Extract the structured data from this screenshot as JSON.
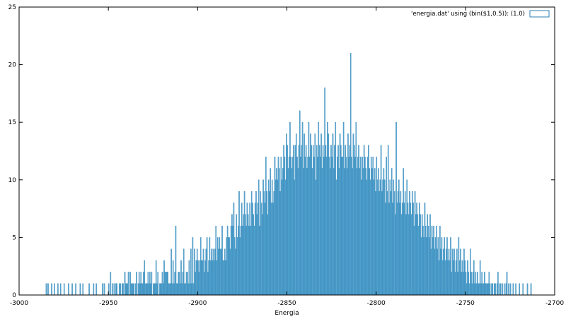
{
  "chart_data": {
    "type": "bar",
    "title": "",
    "xlabel": "Energia",
    "ylabel": "",
    "xlim": [
      -3000,
      -2700
    ],
    "ylim": [
      0,
      25
    ],
    "x_ticks": [
      -3000,
      -2950,
      -2900,
      -2850,
      -2800,
      -2750,
      -2700
    ],
    "x_tick_labels": [
      "-3000",
      "-2950",
      "-2900",
      "-2850",
      "-2800",
      "-2750",
      "-2700"
    ],
    "y_ticks": [
      0,
      5,
      10,
      15,
      20,
      25
    ],
    "y_tick_labels": [
      "0",
      "5",
      "10",
      "15",
      "20",
      "25"
    ],
    "grid": false,
    "legend_position": "top-right",
    "bin_width": 0.5,
    "fill_color": "#3b97c8",
    "edge_color": "#2b7fb4",
    "series": [
      {
        "name": "'energia.dat' using (bin($1,0.5)): (1.0)",
        "x_start": -2985,
        "values": [
          1,
          0,
          1,
          0,
          0,
          0,
          1,
          0,
          0,
          1,
          0,
          0,
          0,
          1,
          0,
          0,
          1,
          0,
          0,
          0,
          1,
          0,
          0,
          0,
          0,
          1,
          0,
          0,
          0,
          1,
          0,
          0,
          0,
          1,
          0,
          0,
          0,
          0,
          1,
          0,
          0,
          1,
          0,
          0,
          0,
          0,
          0,
          0,
          1,
          0,
          0,
          0,
          0,
          1,
          0,
          0,
          1,
          0,
          0,
          0,
          0,
          0,
          0,
          1,
          0,
          1,
          0,
          0,
          0,
          0,
          1,
          0,
          2,
          0,
          1,
          0,
          1,
          0,
          1,
          1,
          0,
          0,
          1,
          1,
          0,
          1,
          1,
          0,
          2,
          1,
          1,
          1,
          2,
          0,
          2,
          1,
          1,
          1,
          1,
          0,
          1,
          2,
          0,
          1,
          2,
          1,
          2,
          1,
          1,
          2,
          3,
          1,
          1,
          1,
          2,
          1,
          2,
          1,
          2,
          0,
          1,
          1,
          1,
          3,
          1,
          2,
          0,
          1,
          1,
          1,
          2,
          1,
          3,
          2,
          2,
          2,
          2,
          1,
          1,
          1,
          4,
          1,
          3,
          1,
          2,
          6,
          1,
          1,
          2,
          2,
          1,
          3,
          1,
          2,
          4,
          1,
          1,
          2,
          2,
          1,
          3,
          1,
          4,
          1,
          5,
          1,
          4,
          2,
          3,
          4,
          3,
          2,
          3,
          5,
          3,
          3,
          4,
          2,
          3,
          4,
          5,
          2,
          3,
          5,
          3,
          4,
          3,
          4,
          3,
          4,
          6,
          3,
          5,
          4,
          5,
          4,
          4,
          6,
          3,
          3,
          4,
          3,
          5,
          6,
          5,
          5,
          4,
          6,
          7,
          6,
          8,
          5,
          4,
          7,
          5,
          6,
          9,
          5,
          6,
          8,
          6,
          7,
          9,
          7,
          6,
          8,
          7,
          6,
          8,
          6,
          9,
          8,
          7,
          6,
          8,
          9,
          7,
          8,
          10,
          6,
          9,
          8,
          7,
          10,
          9,
          8,
          12,
          9,
          7,
          10,
          9,
          11,
          8,
          10,
          8,
          9,
          12,
          10,
          11,
          10,
          12,
          11,
          9,
          12,
          10,
          11,
          13,
          12,
          10,
          14,
          13,
          11,
          12,
          15,
          12,
          11,
          12,
          13,
          10,
          13,
          14,
          12,
          11,
          13,
          16,
          12,
          13,
          15,
          11,
          14,
          12,
          13,
          11,
          12,
          15,
          12,
          14,
          13,
          11,
          13,
          12,
          14,
          10,
          13,
          12,
          15,
          13,
          12,
          14,
          11,
          13,
          12,
          18,
          13,
          12,
          15,
          14,
          12,
          11,
          13,
          12,
          14,
          11,
          13,
          15,
          10,
          12,
          13,
          11,
          14,
          13,
          12,
          12,
          15,
          11,
          13,
          12,
          11,
          14,
          12,
          13,
          21,
          12,
          11,
          14,
          13,
          12,
          15,
          11,
          12,
          13,
          11,
          12,
          10,
          12,
          11,
          13,
          12,
          11,
          10,
          12,
          13,
          11,
          10,
          12,
          11,
          12,
          10,
          11,
          9,
          12,
          10,
          11,
          9,
          10,
          13,
          9,
          10,
          11,
          10,
          8,
          12,
          9,
          13,
          8,
          10,
          9,
          11,
          8,
          10,
          9,
          7,
          15,
          8,
          9,
          10,
          8,
          9,
          7,
          8,
          11,
          8,
          9,
          7,
          10,
          8,
          7,
          9,
          8,
          7,
          9,
          8,
          6,
          9,
          7,
          8,
          7,
          6,
          8,
          7,
          5,
          7,
          6,
          5,
          8,
          6,
          5,
          7,
          6,
          5,
          7,
          4,
          6,
          5,
          6,
          4,
          5,
          6,
          4,
          5,
          3,
          6,
          4,
          5,
          3,
          4,
          5,
          3,
          4,
          5,
          3,
          4,
          3,
          5,
          2,
          4,
          3,
          4,
          2,
          3,
          4,
          2,
          5,
          3,
          4,
          2,
          3,
          2,
          4,
          3,
          2,
          1,
          3,
          2,
          1,
          4,
          2,
          1,
          2,
          3,
          1,
          2,
          1,
          2,
          1,
          1,
          3,
          1,
          2,
          1,
          1,
          2,
          1,
          1,
          1,
          1,
          2,
          1,
          0,
          1,
          1,
          0,
          1,
          1,
          0,
          1,
          2,
          0,
          1,
          1,
          0,
          1,
          0,
          1,
          0,
          1,
          2,
          0,
          1,
          0,
          1,
          0,
          0,
          1,
          0,
          0,
          1,
          0,
          0,
          0,
          1,
          0,
          0,
          0,
          1,
          0,
          0,
          0,
          0,
          1,
          0,
          0,
          0,
          1
        ]
      }
    ]
  }
}
